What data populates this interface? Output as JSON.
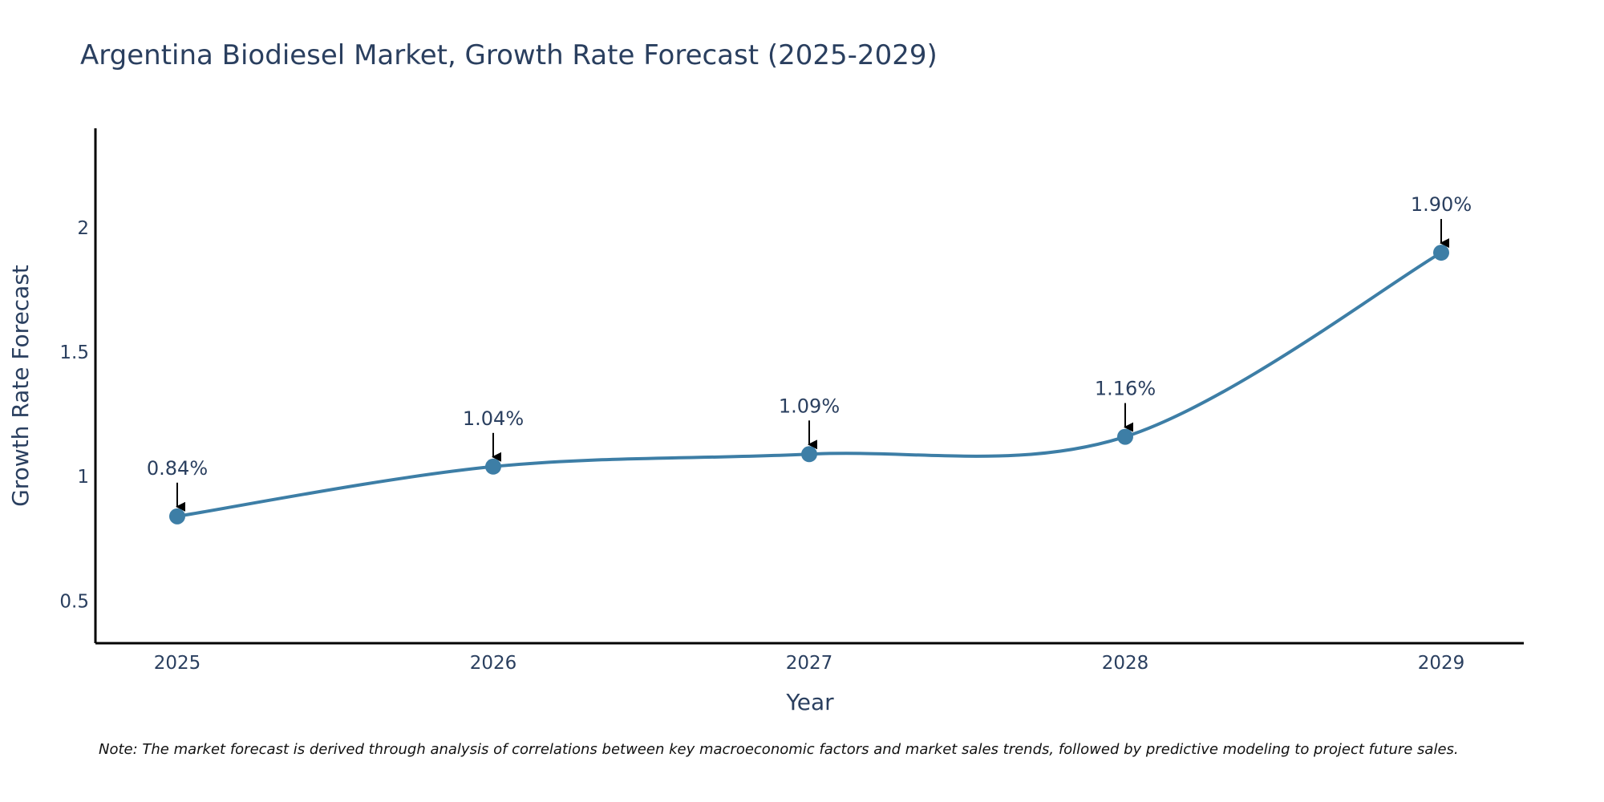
{
  "chart_data": {
    "type": "line",
    "title": "Argentina Biodiesel Market, Growth Rate Forecast (2025-2029)",
    "xlabel": "Year",
    "ylabel": "Growth Rate Forecast",
    "categories": [
      "2025",
      "2026",
      "2027",
      "2028",
      "2029"
    ],
    "values": [
      0.84,
      1.04,
      1.09,
      1.16,
      1.9
    ],
    "data_labels": [
      "0.84%",
      "1.04%",
      "1.09%",
      "1.16%",
      "1.90%"
    ],
    "y_ticks": [
      0.5,
      1,
      1.5,
      2
    ],
    "y_tick_labels": [
      "0.5",
      "1",
      "1.5",
      "2"
    ],
    "ylim": [
      0.33,
      2.4
    ],
    "line_color": "#3d7ea6",
    "marker_color": "#3d7ea6",
    "arrow_color": "#000000",
    "axis_color": "#000000",
    "grid": false,
    "note": "Note: The market forecast is derived through analysis of correlations between key macroeconomic factors and market sales trends, followed by predictive modeling to project future sales."
  }
}
